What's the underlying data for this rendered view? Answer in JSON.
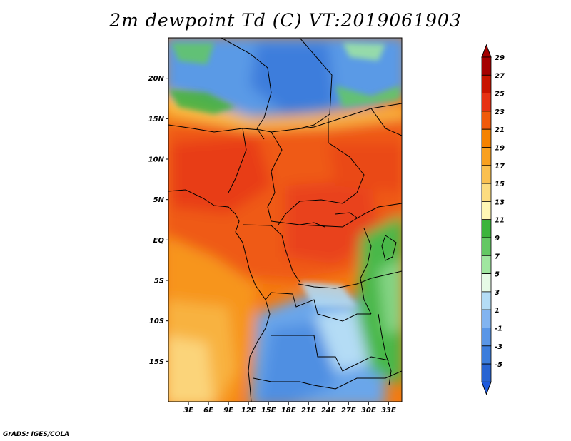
{
  "title": "2m dewpoint Td (C) VT:2019061903",
  "footer": "GrADS: IGES/COLA",
  "map": {
    "region": "Central Africa",
    "lon_range": [
      0,
      35
    ],
    "lat_range": [
      -20,
      25
    ],
    "variable": "2m dewpoint temperature",
    "units": "C",
    "valid_time": "2019061903"
  },
  "lat_ticks": [
    {
      "label": "20N",
      "value": 20
    },
    {
      "label": "15N",
      "value": 15
    },
    {
      "label": "10N",
      "value": 10
    },
    {
      "label": "5N",
      "value": 5
    },
    {
      "label": "EQ",
      "value": 0
    },
    {
      "label": "5S",
      "value": -5
    },
    {
      "label": "10S",
      "value": -10
    },
    {
      "label": "15S",
      "value": -15
    }
  ],
  "lon_ticks": [
    {
      "label": "3E",
      "value": 3
    },
    {
      "label": "6E",
      "value": 6
    },
    {
      "label": "9E",
      "value": 9
    },
    {
      "label": "12E",
      "value": 12
    },
    {
      "label": "15E",
      "value": 15
    },
    {
      "label": "18E",
      "value": 18
    },
    {
      "label": "21E",
      "value": 21
    },
    {
      "label": "24E",
      "value": 24
    },
    {
      "label": "27E",
      "value": 27
    },
    {
      "label": "30E",
      "value": 30
    },
    {
      "label": "33E",
      "value": 33
    }
  ],
  "colorbar": {
    "levels": [
      {
        "label": "29",
        "color": "#a50000"
      },
      {
        "label": "27",
        "color": "#c81400"
      },
      {
        "label": "25",
        "color": "#e63214"
      },
      {
        "label": "23",
        "color": "#f05a0a"
      },
      {
        "label": "21",
        "color": "#f58200"
      },
      {
        "label": "19",
        "color": "#f8a020"
      },
      {
        "label": "17",
        "color": "#fac050"
      },
      {
        "label": "15",
        "color": "#fcdc80"
      },
      {
        "label": "13",
        "color": "#fff6b4"
      },
      {
        "label": "11",
        "color": "#3cb43c"
      },
      {
        "label": "9",
        "color": "#64c864"
      },
      {
        "label": "7",
        "color": "#a0e6a0"
      },
      {
        "label": "5",
        "color": "#e6fae6"
      },
      {
        "label": "3",
        "color": "#b4dcf5"
      },
      {
        "label": "1",
        "color": "#82b4f0"
      },
      {
        "label": "-1",
        "color": "#5a96e6"
      },
      {
        "label": "-3",
        "color": "#3c7ddc"
      },
      {
        "label": "-5",
        "color": "#2864d2"
      }
    ],
    "over_color": "#a50000",
    "under_color": "#1e5adc"
  }
}
